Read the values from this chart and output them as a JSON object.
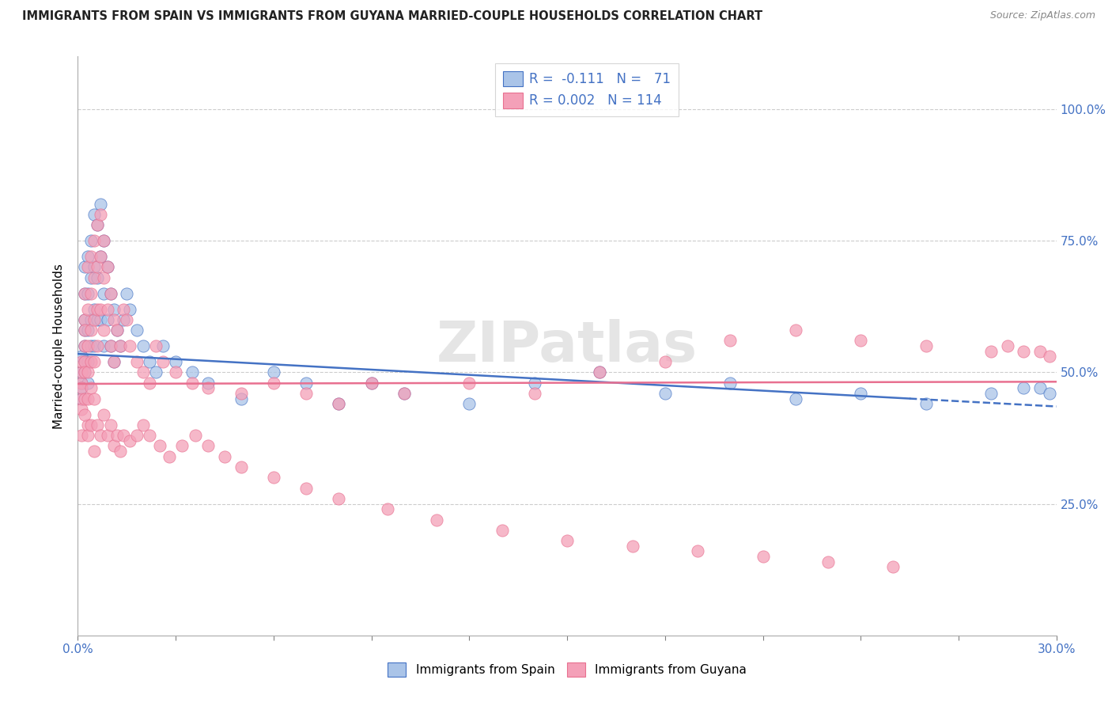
{
  "title": "IMMIGRANTS FROM SPAIN VS IMMIGRANTS FROM GUYANA MARRIED-COUPLE HOUSEHOLDS CORRELATION CHART",
  "source": "Source: ZipAtlas.com",
  "ylabel": "Married-couple Households",
  "yaxis_labels": [
    "100.0%",
    "75.0%",
    "50.0%",
    "25.0%"
  ],
  "yaxis_values": [
    1.0,
    0.75,
    0.5,
    0.25
  ],
  "xlim": [
    0.0,
    0.3
  ],
  "ylim": [
    0.0,
    1.1
  ],
  "legend_line1": "R =  -0.111   N =   71",
  "legend_line2": "R = 0.002   N = 114",
  "color_spain": "#aac4e8",
  "color_guyana": "#f4a0b8",
  "color_blue": "#4472c4",
  "color_pink": "#e87090",
  "trend_spain": [
    0.0,
    0.535,
    0.3,
    0.435
  ],
  "trend_guyana": [
    0.0,
    0.478,
    0.3,
    0.482
  ],
  "trend_dash_start": 0.255,
  "watermark": "ZIPatlas",
  "spain_x": [
    0.001,
    0.001,
    0.001,
    0.001,
    0.001,
    0.002,
    0.002,
    0.002,
    0.002,
    0.002,
    0.002,
    0.002,
    0.003,
    0.003,
    0.003,
    0.003,
    0.003,
    0.004,
    0.004,
    0.004,
    0.004,
    0.005,
    0.005,
    0.005,
    0.005,
    0.006,
    0.006,
    0.006,
    0.007,
    0.007,
    0.007,
    0.008,
    0.008,
    0.008,
    0.009,
    0.009,
    0.01,
    0.01,
    0.011,
    0.011,
    0.012,
    0.013,
    0.014,
    0.015,
    0.016,
    0.018,
    0.02,
    0.022,
    0.024,
    0.026,
    0.03,
    0.035,
    0.04,
    0.05,
    0.06,
    0.07,
    0.08,
    0.09,
    0.1,
    0.12,
    0.14,
    0.16,
    0.18,
    0.2,
    0.22,
    0.24,
    0.26,
    0.28,
    0.29,
    0.295,
    0.298
  ],
  "spain_y": [
    0.48,
    0.47,
    0.5,
    0.45,
    0.53,
    0.55,
    0.6,
    0.52,
    0.65,
    0.58,
    0.5,
    0.7,
    0.72,
    0.65,
    0.58,
    0.52,
    0.48,
    0.75,
    0.68,
    0.6,
    0.55,
    0.8,
    0.7,
    0.62,
    0.55,
    0.78,
    0.68,
    0.6,
    0.82,
    0.72,
    0.6,
    0.75,
    0.65,
    0.55,
    0.7,
    0.6,
    0.65,
    0.55,
    0.62,
    0.52,
    0.58,
    0.55,
    0.6,
    0.65,
    0.62,
    0.58,
    0.55,
    0.52,
    0.5,
    0.55,
    0.52,
    0.5,
    0.48,
    0.45,
    0.5,
    0.48,
    0.44,
    0.48,
    0.46,
    0.44,
    0.48,
    0.5,
    0.46,
    0.48,
    0.45,
    0.46,
    0.44,
    0.46,
    0.47,
    0.47,
    0.46
  ],
  "guyana_x": [
    0.001,
    0.001,
    0.001,
    0.001,
    0.001,
    0.001,
    0.002,
    0.002,
    0.002,
    0.002,
    0.002,
    0.002,
    0.002,
    0.003,
    0.003,
    0.003,
    0.003,
    0.003,
    0.003,
    0.004,
    0.004,
    0.004,
    0.004,
    0.004,
    0.005,
    0.005,
    0.005,
    0.005,
    0.005,
    0.006,
    0.006,
    0.006,
    0.006,
    0.007,
    0.007,
    0.007,
    0.008,
    0.008,
    0.008,
    0.009,
    0.009,
    0.01,
    0.01,
    0.011,
    0.011,
    0.012,
    0.013,
    0.014,
    0.015,
    0.016,
    0.018,
    0.02,
    0.022,
    0.024,
    0.026,
    0.03,
    0.035,
    0.04,
    0.05,
    0.06,
    0.07,
    0.08,
    0.09,
    0.1,
    0.12,
    0.14,
    0.16,
    0.18,
    0.2,
    0.22,
    0.24,
    0.26,
    0.28,
    0.285,
    0.29,
    0.295,
    0.298,
    0.001,
    0.002,
    0.003,
    0.004,
    0.005,
    0.006,
    0.007,
    0.008,
    0.009,
    0.01,
    0.011,
    0.012,
    0.013,
    0.014,
    0.016,
    0.018,
    0.02,
    0.022,
    0.025,
    0.028,
    0.032,
    0.036,
    0.04,
    0.045,
    0.05,
    0.06,
    0.07,
    0.08,
    0.095,
    0.11,
    0.13,
    0.15,
    0.17,
    0.19,
    0.21,
    0.23,
    0.25
  ],
  "guyana_y": [
    0.48,
    0.5,
    0.45,
    0.52,
    0.47,
    0.43,
    0.55,
    0.6,
    0.52,
    0.65,
    0.58,
    0.5,
    0.45,
    0.7,
    0.62,
    0.55,
    0.5,
    0.45,
    0.4,
    0.72,
    0.65,
    0.58,
    0.52,
    0.47,
    0.75,
    0.68,
    0.6,
    0.52,
    0.45,
    0.78,
    0.7,
    0.62,
    0.55,
    0.8,
    0.72,
    0.62,
    0.75,
    0.68,
    0.58,
    0.7,
    0.62,
    0.65,
    0.55,
    0.6,
    0.52,
    0.58,
    0.55,
    0.62,
    0.6,
    0.55,
    0.52,
    0.5,
    0.48,
    0.55,
    0.52,
    0.5,
    0.48,
    0.47,
    0.46,
    0.48,
    0.46,
    0.44,
    0.48,
    0.46,
    0.48,
    0.46,
    0.5,
    0.52,
    0.56,
    0.58,
    0.56,
    0.55,
    0.54,
    0.55,
    0.54,
    0.54,
    0.53,
    0.38,
    0.42,
    0.38,
    0.4,
    0.35,
    0.4,
    0.38,
    0.42,
    0.38,
    0.4,
    0.36,
    0.38,
    0.35,
    0.38,
    0.37,
    0.38,
    0.4,
    0.38,
    0.36,
    0.34,
    0.36,
    0.38,
    0.36,
    0.34,
    0.32,
    0.3,
    0.28,
    0.26,
    0.24,
    0.22,
    0.2,
    0.18,
    0.17,
    0.16,
    0.15,
    0.14,
    0.13
  ]
}
